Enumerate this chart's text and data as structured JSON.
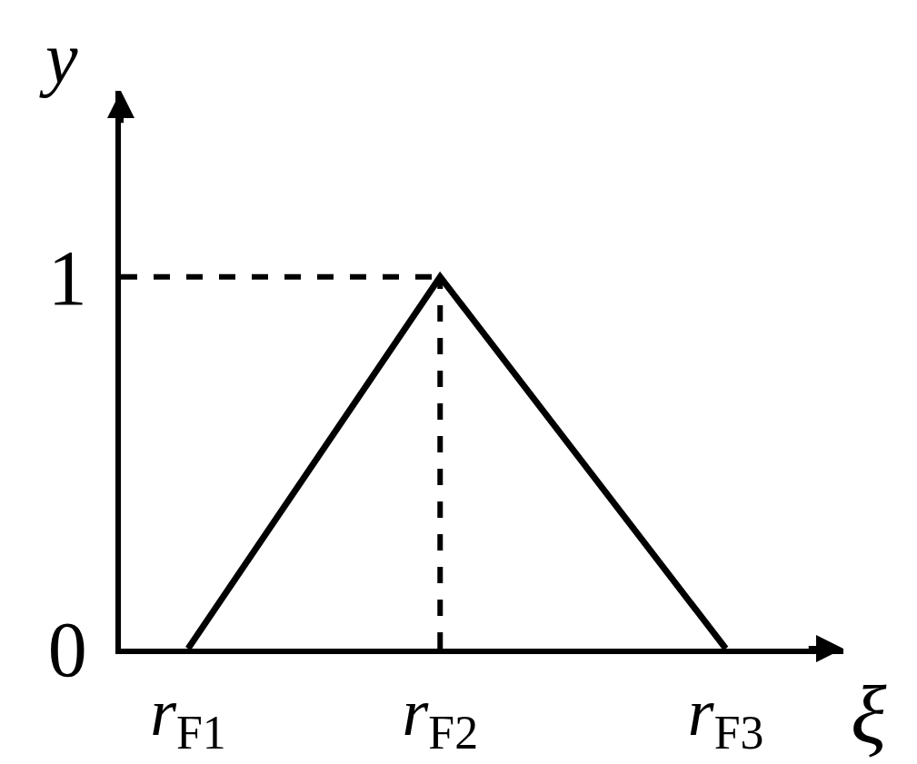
{
  "chart_data": {
    "type": "line",
    "xlabel": "ξ",
    "ylabel": "y",
    "categories": [
      null,
      null,
      null,
      null,
      "r$_{F1}$",
      null,
      null,
      null,
      null,
      null,
      null,
      null,
      null,
      null,
      null,
      null,
      null,
      null,
      null,
      "r$_{F2}$",
      null,
      null,
      null,
      null,
      null,
      null,
      null,
      null,
      null,
      null,
      null,
      null,
      null,
      null,
      null,
      null,
      "r$_{F3}$",
      null,
      null,
      null,
      null,
      null,
      null,
      null
    ],
    "ylim": [
      0,
      1.5
    ],
    "yticks": [
      0,
      1
    ],
    "marker": "none",
    "line_style": "solid",
    "series": [
      {
        "color": "#000000",
        "x": [
          "r$_{F1}$",
          "r$_{F2}$",
          "r$_{F3}$"
        ],
        "values": [
          0,
          1,
          0
        ]
      },
      {
        "color": "#000000",
        "values": [
          1,
          1,
          1,
          1,
          1,
          1,
          1,
          1,
          1,
          1,
          1,
          1,
          1,
          1,
          1,
          1,
          1,
          1,
          1,
          1,
          null,
          null,
          null,
          null,
          null,
          null,
          null,
          null,
          null,
          null,
          null,
          null,
          null,
          null,
          null,
          null,
          null,
          null,
          null,
          null,
          null,
          null,
          null,
          null
        ],
        "line_style": "dashed"
      },
      {
        "color": "#000000",
        "x": [
          "r$_{F2}$",
          "r$_{F2}$"
        ],
        "values": [
          0,
          1
        ],
        "line_style": "dashed"
      }
    ]
  }
}
